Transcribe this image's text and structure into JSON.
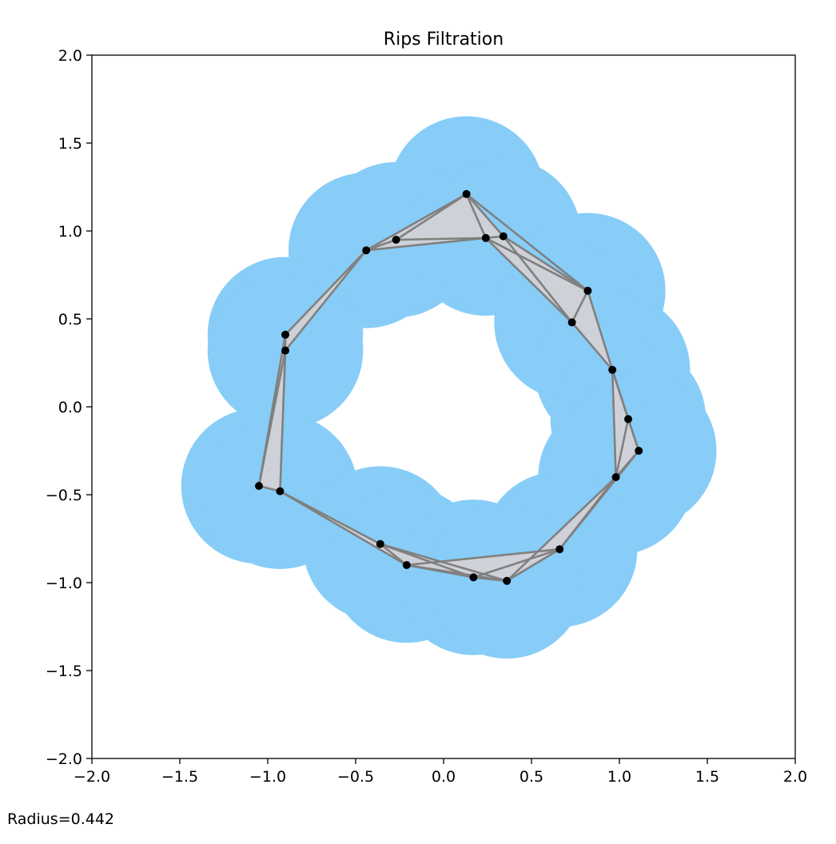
{
  "footer_text": "Radius=0.442",
  "chart_data": {
    "type": "scatter",
    "title": "Rips Filtration",
    "xlabel": "",
    "ylabel": "",
    "xlim": [
      -2.0,
      2.0
    ],
    "ylim": [
      -2.0,
      2.0
    ],
    "xticks": [
      -2.0,
      -1.5,
      -1.0,
      -0.5,
      0.0,
      0.5,
      1.0,
      1.5,
      2.0
    ],
    "yticks": [
      -2.0,
      -1.5,
      -1.0,
      -0.5,
      0.0,
      0.5,
      1.0,
      1.5,
      2.0
    ],
    "xtick_labels": [
      "−2.0",
      "−1.5",
      "−1.0",
      "−0.5",
      "0.0",
      "0.5",
      "1.0",
      "1.5",
      "2.0"
    ],
    "ytick_labels": [
      "−2.0",
      "−1.5",
      "−1.0",
      "−0.5",
      "0.0",
      "0.5",
      "1.0",
      "1.5",
      "2.0"
    ],
    "radius": 0.442,
    "grid": false,
    "colors": {
      "disk": "#87cdf7",
      "edge": "#808080",
      "triangle": "#cfd1d8",
      "point": "#000000"
    },
    "points": [
      {
        "x": 0.13,
        "y": 1.21
      },
      {
        "x": -0.27,
        "y": 0.95
      },
      {
        "x": -0.44,
        "y": 0.89
      },
      {
        "x": 0.24,
        "y": 0.96
      },
      {
        "x": 0.34,
        "y": 0.97
      },
      {
        "x": 0.82,
        "y": 0.66
      },
      {
        "x": 0.73,
        "y": 0.48
      },
      {
        "x": 0.96,
        "y": 0.21
      },
      {
        "x": -0.9,
        "y": 0.41
      },
      {
        "x": -0.9,
        "y": 0.32
      },
      {
        "x": 1.05,
        "y": -0.07
      },
      {
        "x": 1.11,
        "y": -0.25
      },
      {
        "x": 0.98,
        "y": -0.4
      },
      {
        "x": -1.05,
        "y": -0.45
      },
      {
        "x": -0.93,
        "y": -0.48
      },
      {
        "x": 0.66,
        "y": -0.81
      },
      {
        "x": -0.36,
        "y": -0.78
      },
      {
        "x": -0.21,
        "y": -0.9
      },
      {
        "x": 0.17,
        "y": -0.97
      },
      {
        "x": 0.36,
        "y": -0.99
      }
    ],
    "edges": [
      [
        0,
        1
      ],
      [
        0,
        2
      ],
      [
        0,
        3
      ],
      [
        0,
        4
      ],
      [
        0,
        5
      ],
      [
        1,
        2
      ],
      [
        1,
        3
      ],
      [
        2,
        3
      ],
      [
        3,
        4
      ],
      [
        3,
        5
      ],
      [
        4,
        5
      ],
      [
        3,
        6
      ],
      [
        4,
        6
      ],
      [
        5,
        6
      ],
      [
        2,
        8
      ],
      [
        2,
        9
      ],
      [
        8,
        9
      ],
      [
        8,
        13
      ],
      [
        9,
        13
      ],
      [
        9,
        14
      ],
      [
        13,
        14
      ],
      [
        5,
        7
      ],
      [
        6,
        7
      ],
      [
        7,
        10
      ],
      [
        7,
        11
      ],
      [
        7,
        12
      ],
      [
        10,
        11
      ],
      [
        10,
        12
      ],
      [
        11,
        12
      ],
      [
        11,
        15
      ],
      [
        12,
        15
      ],
      [
        12,
        19
      ],
      [
        15,
        19
      ],
      [
        15,
        17
      ],
      [
        15,
        18
      ],
      [
        14,
        16
      ],
      [
        14,
        17
      ],
      [
        16,
        17
      ],
      [
        16,
        18
      ],
      [
        17,
        18
      ],
      [
        17,
        19
      ],
      [
        18,
        19
      ],
      [
        16,
        19
      ]
    ],
    "triangles": [
      [
        0,
        1,
        3
      ],
      [
        0,
        3,
        4
      ],
      [
        0,
        2,
        3
      ],
      [
        3,
        4,
        5
      ],
      [
        4,
        5,
        6
      ],
      [
        3,
        5,
        6
      ],
      [
        2,
        8,
        9
      ],
      [
        8,
        9,
        13
      ],
      [
        9,
        13,
        14
      ],
      [
        5,
        6,
        7
      ],
      [
        7,
        10,
        11
      ],
      [
        7,
        10,
        12
      ],
      [
        10,
        11,
        12
      ],
      [
        11,
        12,
        15
      ],
      [
        12,
        15,
        19
      ],
      [
        15,
        18,
        19
      ],
      [
        15,
        17,
        18
      ],
      [
        14,
        16,
        17
      ],
      [
        16,
        17,
        18
      ],
      [
        17,
        18,
        19
      ],
      [
        16,
        18,
        19
      ]
    ]
  }
}
